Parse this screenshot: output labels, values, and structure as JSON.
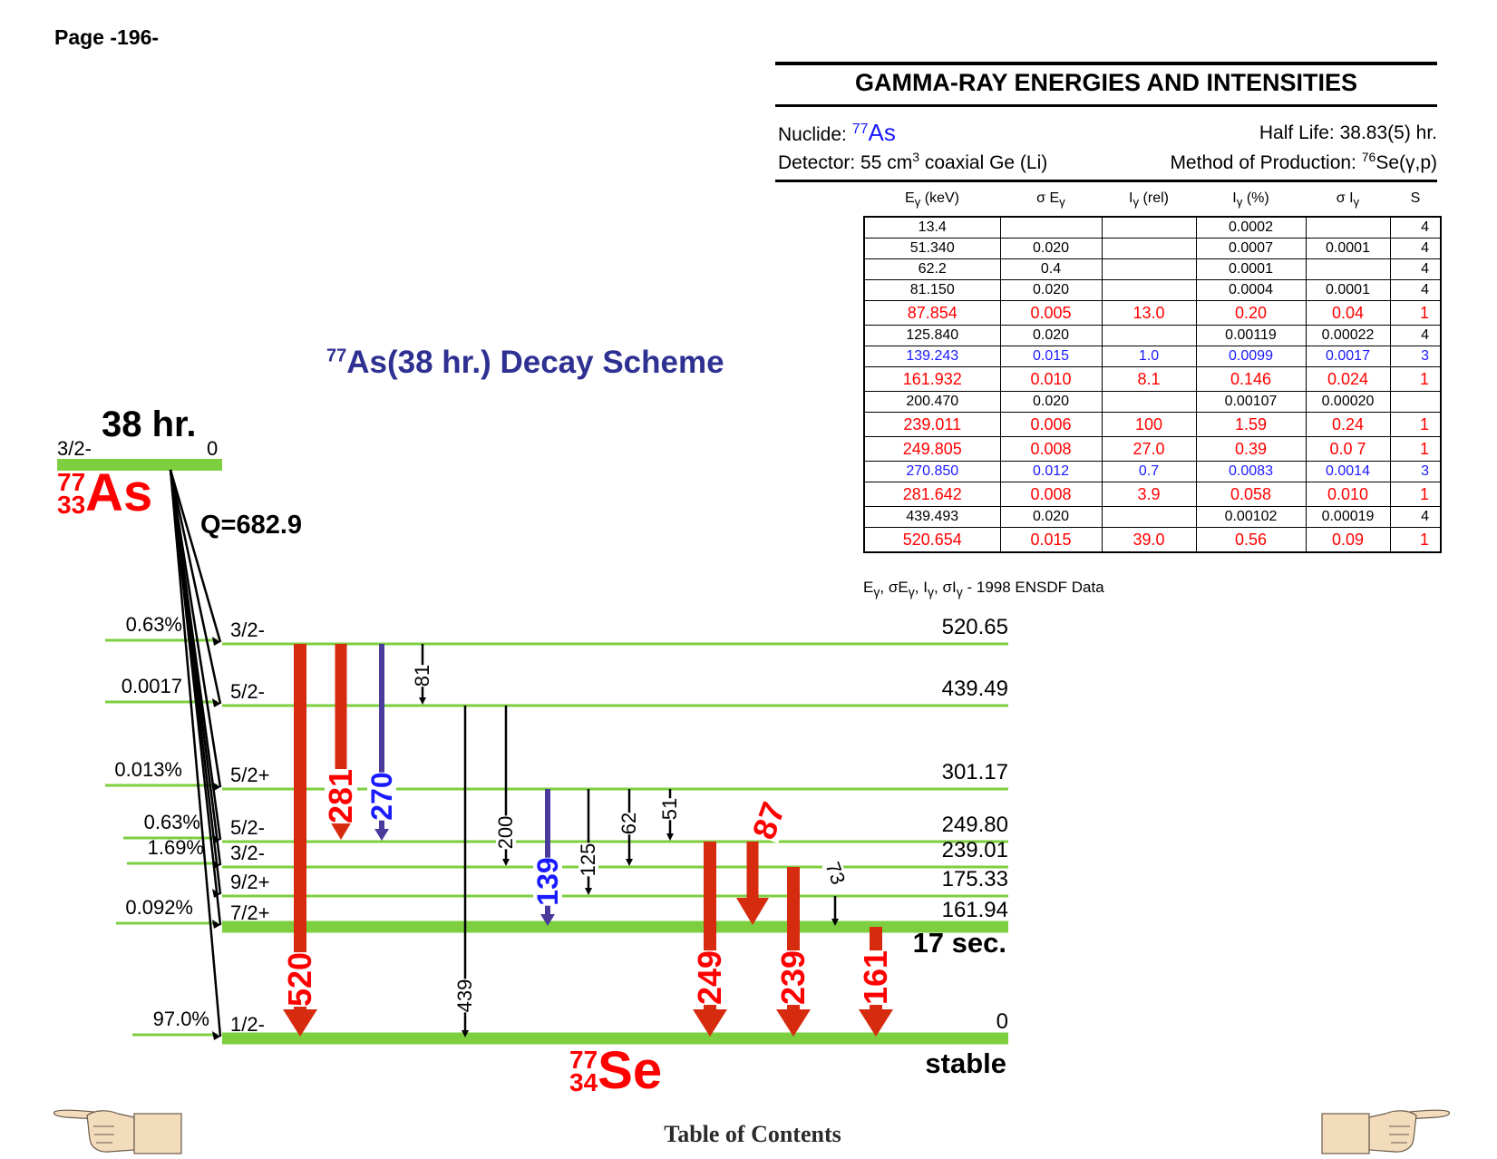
{
  "page_label": "Page -196-",
  "header": {
    "title": "GAMMA-RAY ENERGIES AND INTENSITIES",
    "nuclide_label": "Nuclide: ",
    "nuclide_mass": "77",
    "nuclide_symbol": "As",
    "half_life": "Half Life: 38.83(5) hr.",
    "detector_pre": "Detector: 55 cm",
    "detector_sup": "3",
    "detector_post": " coaxial Ge (Li)",
    "production_pre": "Method of Production: ",
    "production_sup": "76",
    "production_post": "Se(γ,p)"
  },
  "table": {
    "columns": {
      "energy": "E",
      "energy_sub": "γ",
      "energy_unit": " (keV)",
      "sigma_e": "σ E",
      "sigma_e_sub": "γ",
      "irel": "I",
      "irel_sub": "γ",
      "irel_unit": " (rel)",
      "ipct": "I",
      "ipct_sub": "γ",
      "ipct_unit": " (%)",
      "sigma_i": "σ I",
      "sigma_i_sub": "γ",
      "s": "S"
    },
    "rows": [
      {
        "e": "13.4",
        "se": "",
        "irel": "",
        "ipct": "0.0002",
        "si": "",
        "s": "4",
        "color": "black"
      },
      {
        "e": "51.340",
        "se": "0.020",
        "irel": "",
        "ipct": "0.0007",
        "si": "0.0001",
        "s": "4",
        "color": "black"
      },
      {
        "e": "62.2",
        "se": "0.4",
        "irel": "",
        "ipct": "0.0001",
        "si": "",
        "s": "4",
        "color": "black"
      },
      {
        "e": "81.150",
        "se": "0.020",
        "irel": "",
        "ipct": "0.0004",
        "si": "0.0001",
        "s": "4",
        "color": "black"
      },
      {
        "e": "87.854",
        "se": "0.005",
        "irel": "13.0",
        "ipct": "0.20",
        "si": "0.04",
        "s": "1",
        "color": "red"
      },
      {
        "e": "125.840",
        "se": "0.020",
        "irel": "",
        "ipct": "0.00119",
        "si": "0.00022",
        "s": "4",
        "color": "black"
      },
      {
        "e": "139.243",
        "se": "0.015",
        "irel": "1.0",
        "ipct": "0.0099",
        "si": "0.0017",
        "s": "3",
        "color": "blue"
      },
      {
        "e": "161.932",
        "se": "0.010",
        "irel": "8.1",
        "ipct": "0.146",
        "si": "0.024",
        "s": "1",
        "color": "red"
      },
      {
        "e": "200.470",
        "se": "0.020",
        "irel": "",
        "ipct": "0.00107",
        "si": "0.00020",
        "s": "",
        "color": "black"
      },
      {
        "e": "239.011",
        "se": "0.006",
        "irel": "100",
        "ipct": "1.59",
        "si": "0.24",
        "s": "1",
        "color": "red"
      },
      {
        "e": "249.805",
        "se": "0.008",
        "irel": "27.0",
        "ipct": "0.39",
        "si": "0.0 7",
        "s": "1",
        "color": "red"
      },
      {
        "e": "270.850",
        "se": "0.012",
        "irel": "0.7",
        "ipct": "0.0083",
        "si": "0.0014",
        "s": "3",
        "color": "blue"
      },
      {
        "e": "281.642",
        "se": "0.008",
        "irel": "3.9",
        "ipct": "0.058",
        "si": "0.010",
        "s": "1",
        "color": "red"
      },
      {
        "e": "439.493",
        "se": "0.020",
        "irel": "",
        "ipct": "0.00102",
        "si": "0.00019",
        "s": "4",
        "color": "black"
      },
      {
        "e": "520.654",
        "se": "0.015",
        "irel": "39.0",
        "ipct": "0.56",
        "si": "0.09",
        "s": "1",
        "color": "red"
      }
    ],
    "footnote_parts": [
      "E",
      "γ",
      ", σE",
      "γ",
      ", I",
      "γ",
      ", σI",
      "γ",
      " - 1998 ENSDF Data"
    ]
  },
  "scheme": {
    "title_mass": "77",
    "title_text": "As(38 hr.) Decay Scheme",
    "parent": {
      "half_life": "38 hr.",
      "spin": "3/2-",
      "energy": "0",
      "mass": "77",
      "z": "33",
      "symbol": "As",
      "q_value": "Q=682.9"
    },
    "levels": [
      {
        "energy_label": "520.65",
        "spin": "3/2-",
        "beta": "0.63%"
      },
      {
        "energy_label": "439.49",
        "spin": "5/2-",
        "beta": "0.0017"
      },
      {
        "energy_label": "301.17",
        "spin": "5/2+",
        "beta": "0.013%"
      },
      {
        "energy_label": "249.80",
        "spin": "5/2-",
        "beta": "0.63%"
      },
      {
        "energy_label": "239.01",
        "spin": "3/2-",
        "beta": "1.69%"
      },
      {
        "energy_label": "175.33",
        "spin": "9/2+",
        "beta": ""
      },
      {
        "energy_label": "161.94",
        "spin": "7/2+",
        "beta": "0.092%"
      },
      {
        "energy_label": "0",
        "spin": "1/2-",
        "beta": "97.0%"
      }
    ],
    "isomer_half_life": "17 sec.",
    "stable_label": "stable",
    "daughter": {
      "mass": "77",
      "z": "34",
      "symbol": "Se"
    },
    "gammas": [
      {
        "label": "520",
        "color": "red"
      },
      {
        "label": "281",
        "color": "red"
      },
      {
        "label": "270",
        "color": "blue"
      },
      {
        "label": "81",
        "color": "black"
      },
      {
        "label": "439",
        "color": "black"
      },
      {
        "label": "200",
        "color": "black"
      },
      {
        "label": "139",
        "color": "blue"
      },
      {
        "label": "125",
        "color": "black"
      },
      {
        "label": "62",
        "color": "black"
      },
      {
        "label": "51",
        "color": "black"
      },
      {
        "label": "87",
        "color": "red"
      },
      {
        "label": "249",
        "color": "red"
      },
      {
        "label": "239",
        "color": "red"
      },
      {
        "label": "73",
        "color": "black"
      },
      {
        "label": "161",
        "color": "red"
      }
    ]
  },
  "nav": {
    "toc": "Table of Contents"
  },
  "colors": {
    "level_green": "#7dcf3f",
    "gamma_red": "#d62b0e",
    "gamma_purple": "#4a3a9c",
    "title_navy": "#2e3192"
  }
}
